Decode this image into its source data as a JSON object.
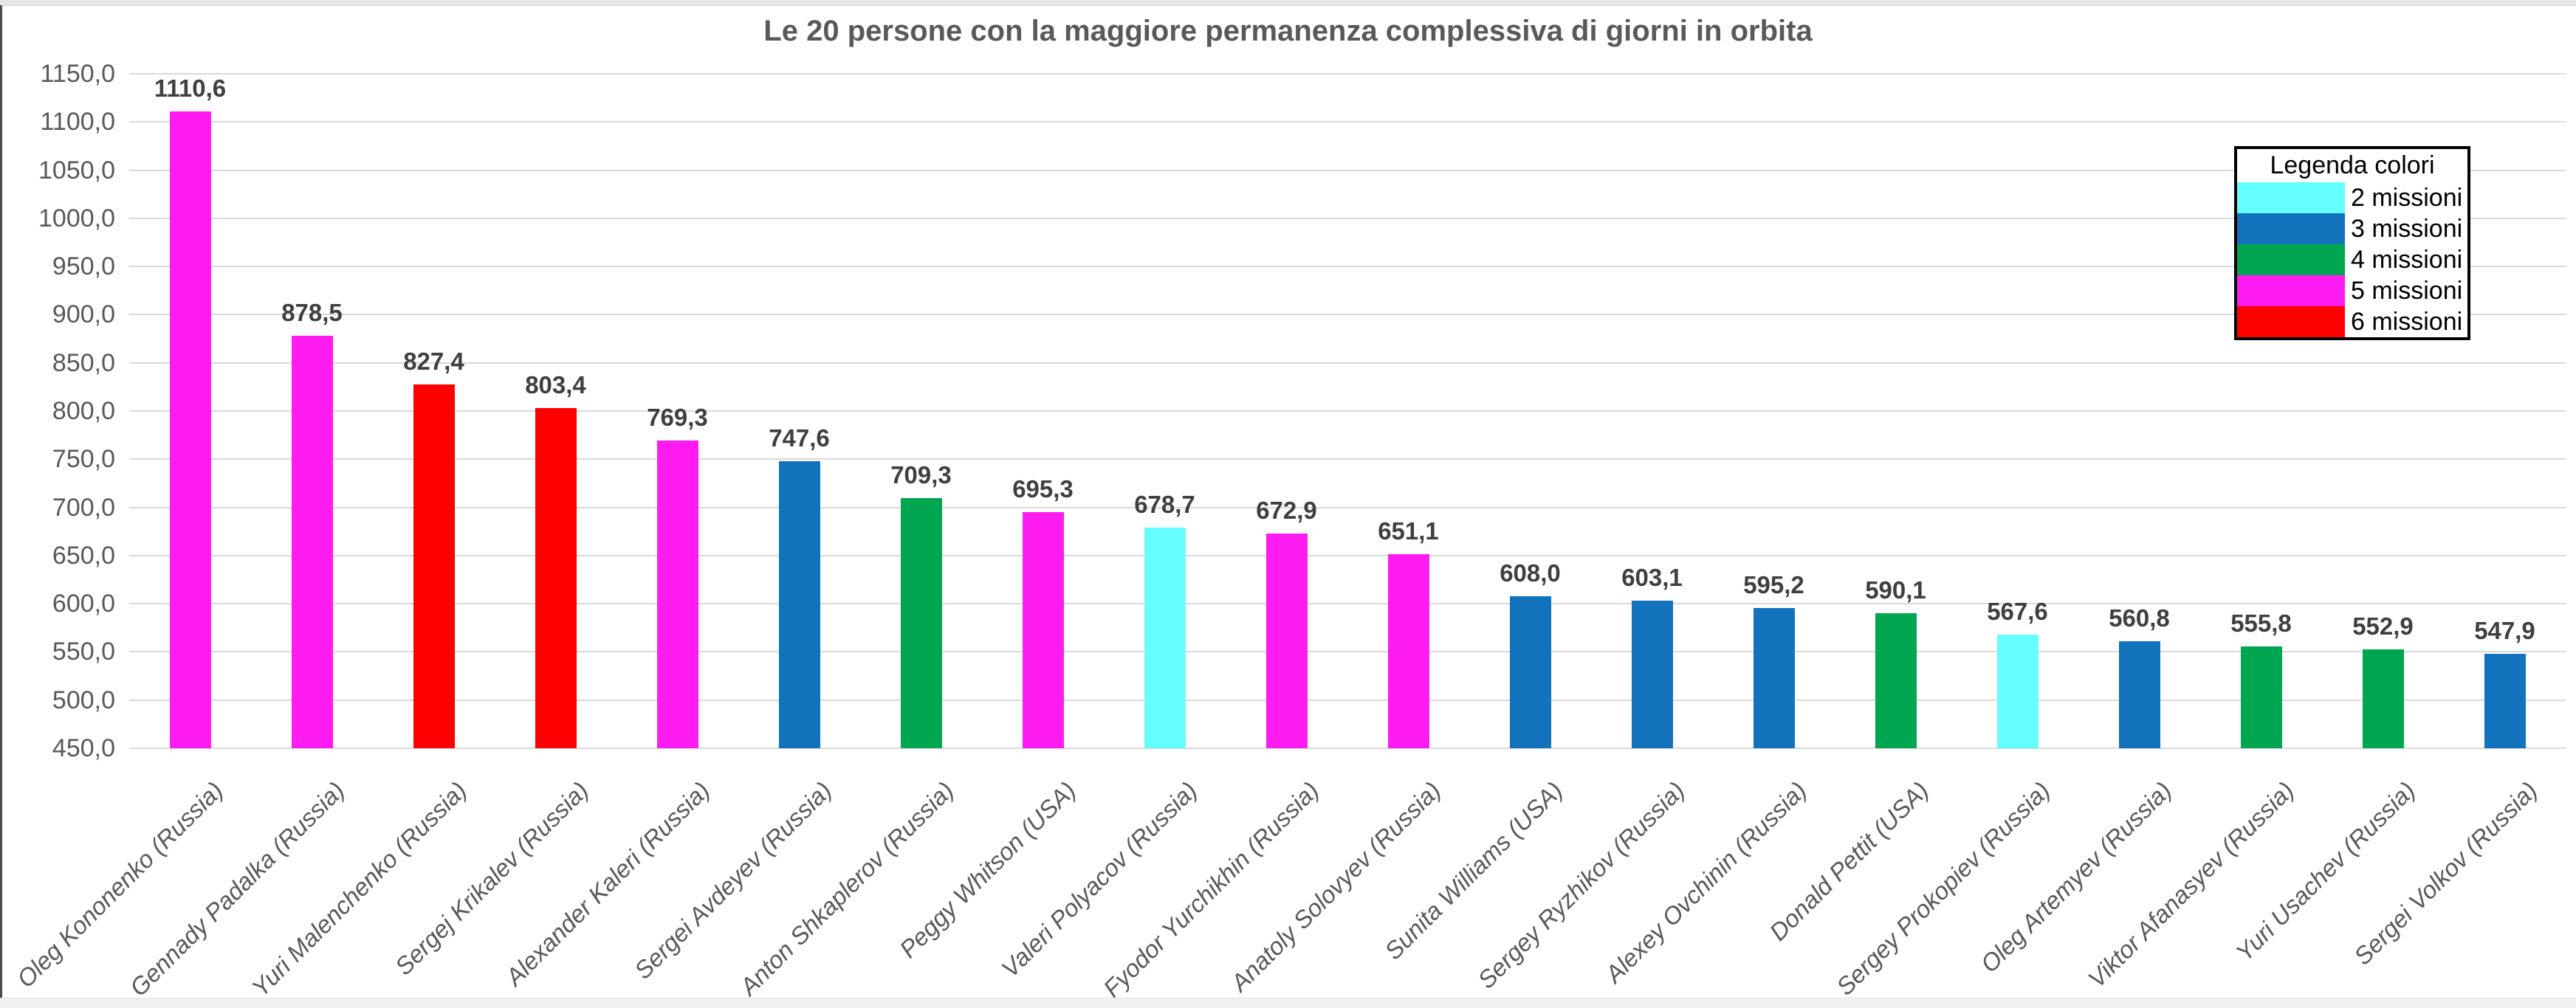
{
  "chart_data": {
    "type": "bar",
    "title": "Le 20 persone con la maggiore permanenza complessiva di giorni in orbita",
    "xlabel": "",
    "ylabel": "",
    "ylim": [
      450,
      1150
    ],
    "ytick_step": 50,
    "ytick_labels": [
      "1150,0",
      "1100,0",
      "1050,0",
      "1000,0",
      "950,0",
      "900,0",
      "850,0",
      "800,0",
      "750,0",
      "700,0",
      "650,0",
      "600,0",
      "550,0",
      "500,0",
      "450,0"
    ],
    "grid": true,
    "categories": [
      "Oleg Kononenko (Russia)",
      "Gennady Padalka (Russia)",
      "Yuri Malenchenko (Russia)",
      "Sergej Krikalev (Russia)",
      "Alexander Kaleri (Russia)",
      "Sergei Avdeyev (Russia)",
      "Anton Shkaplerov (Russia)",
      "Peggy Whitson (USA)",
      "Valeri Polyacov (Russia)",
      "Fyodor Yurchikhin (Russia)",
      "Anatoly Solovyev (Russia)",
      "Sunita Williams (USA)",
      "Sergey Ryzhikov (Russia)",
      "Alexey Ovchinin (Russia)",
      "Donald Pettit (USA)",
      "Sergey Prokopiev (Russia)",
      "Oleg Artemyev (Russia)",
      "Viktor Afanasyev (Russia)",
      "Yuri Usachev (Russia)",
      "Sergei Volkov (Russia)"
    ],
    "values": [
      1110.6,
      878.5,
      827.4,
      803.4,
      769.3,
      747.6,
      709.3,
      695.3,
      678.7,
      672.9,
      651.1,
      608.0,
      603.1,
      595.2,
      590.1,
      567.6,
      560.8,
      555.8,
      552.9,
      547.9
    ],
    "data_labels": [
      "1110,6",
      "878,5",
      "827,4",
      "803,4",
      "769,3",
      "747,6",
      "709,3",
      "695,3",
      "678,7",
      "672,9",
      "651,1",
      "608,0",
      "603,1",
      "595,2",
      "590,1",
      "567,6",
      "560,8",
      "555,8",
      "552,9",
      "547,9"
    ],
    "missions_per_bar": [
      5,
      5,
      6,
      6,
      5,
      3,
      4,
      5,
      2,
      5,
      5,
      3,
      3,
      3,
      4,
      2,
      3,
      4,
      4,
      3
    ],
    "mission_colors": {
      "2": "#66FFFF",
      "3": "#1272BC",
      "4": "#00A550",
      "5": "#FF1CF0",
      "6": "#FF0000"
    },
    "legend": {
      "title": "Legenda colori",
      "position": "top-right",
      "entries": [
        {
          "label": "2 missioni",
          "color": "#66FFFF"
        },
        {
          "label": "3 missioni",
          "color": "#1272BC"
        },
        {
          "label": "4 missioni",
          "color": "#00A550"
        },
        {
          "label": "5 missioni",
          "color": "#FF1CF0"
        },
        {
          "label": "6 missioni",
          "color": "#FF0000"
        }
      ]
    },
    "grid_color": "#d9d9d9",
    "text_color": "#595959"
  }
}
